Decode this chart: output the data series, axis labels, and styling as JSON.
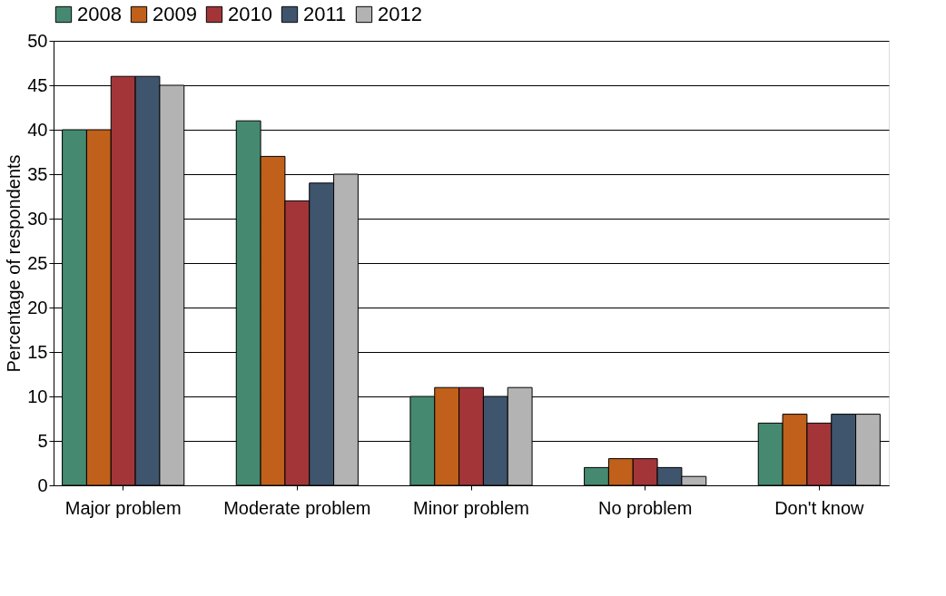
{
  "chart_data": {
    "type": "bar",
    "ylabel": "Percentage of respondents",
    "categories": [
      "Major problem",
      "Moderate problem",
      "Minor problem",
      "No problem",
      "Don't know"
    ],
    "series": [
      {
        "name": "2008",
        "color": "#458a70",
        "values": [
          40,
          41,
          10,
          2,
          7
        ]
      },
      {
        "name": "2009",
        "color": "#c0601a",
        "values": [
          40,
          37,
          11,
          3,
          8
        ]
      },
      {
        "name": "2010",
        "color": "#a33538",
        "values": [
          46,
          32,
          11,
          3,
          7
        ]
      },
      {
        "name": "2011",
        "color": "#3f556e",
        "values": [
          46,
          34,
          10,
          2,
          8
        ]
      },
      {
        "name": "2012",
        "color": "#b3b3b3",
        "values": [
          45,
          35,
          11,
          1,
          8
        ]
      }
    ],
    "ylim": [
      0,
      50
    ],
    "yticks": [
      0,
      5,
      10,
      15,
      20,
      25,
      30,
      35,
      40,
      45,
      50
    ],
    "grid": "y",
    "legend": "top"
  }
}
